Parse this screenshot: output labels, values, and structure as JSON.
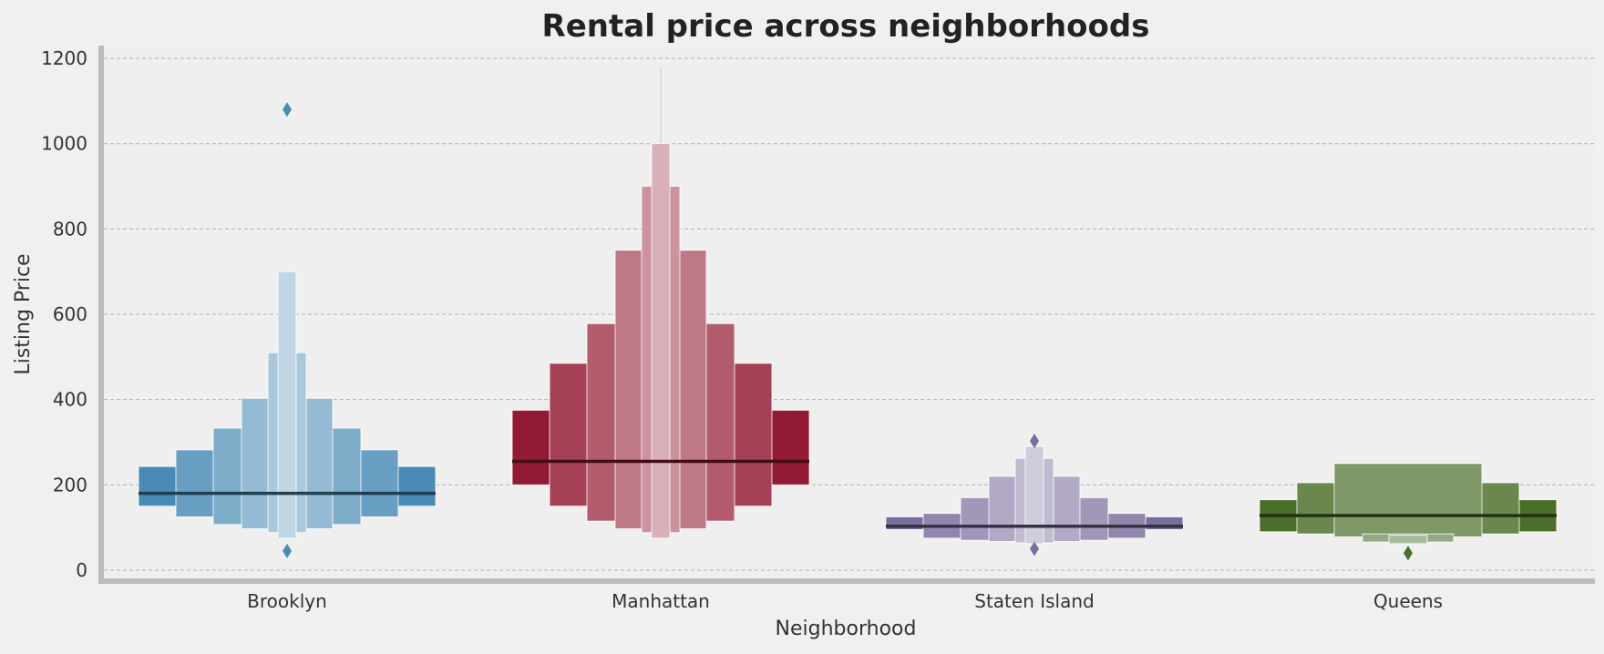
{
  "chart_data": {
    "type": "boxen",
    "title": "Rental price across neighborhoods",
    "xlabel": "Neighborhood",
    "ylabel": "Listing Price",
    "ylim": [
      -30,
      1230
    ],
    "yticks": [
      0,
      200,
      400,
      600,
      800,
      1000,
      1200
    ],
    "grid": true,
    "categories": [
      "Brooklyn",
      "Manhattan",
      "Staten Island",
      "Queens"
    ],
    "series": [
      {
        "name": "Brooklyn",
        "color": "#4a8bb5",
        "median": 180,
        "boxes": [
          [
            150,
            243
          ],
          [
            125,
            282
          ],
          [
            107,
            333
          ],
          [
            97,
            403
          ],
          [
            88,
            510
          ],
          [
            75,
            700
          ]
        ],
        "outliers": [
          1080,
          45
        ]
      },
      {
        "name": "Manhattan",
        "color": "#931a33",
        "median": 255,
        "boxes": [
          [
            200,
            375
          ],
          [
            150,
            485
          ],
          [
            115,
            578
          ],
          [
            97,
            750
          ],
          [
            88,
            900
          ],
          [
            75,
            1000
          ]
        ],
        "outliers": [],
        "whisker": [
          1000,
          1180
        ]
      },
      {
        "name": "Staten Island",
        "color": "#7a6e9c",
        "median": 103,
        "boxes": [
          [
            95,
            125
          ],
          [
            75,
            133
          ],
          [
            70,
            170
          ],
          [
            67,
            220
          ],
          [
            64,
            262
          ],
          [
            62,
            290
          ]
        ],
        "outliers": [
          303,
          50
        ]
      },
      {
        "name": "Queens",
        "color": "#4b6e2a",
        "median": 128,
        "boxes": [
          [
            90,
            165
          ],
          [
            85,
            205
          ],
          [
            78,
            250
          ],
          [
            66,
            85
          ],
          [
            62,
            82
          ]
        ],
        "outliers": [
          40
        ]
      }
    ]
  }
}
